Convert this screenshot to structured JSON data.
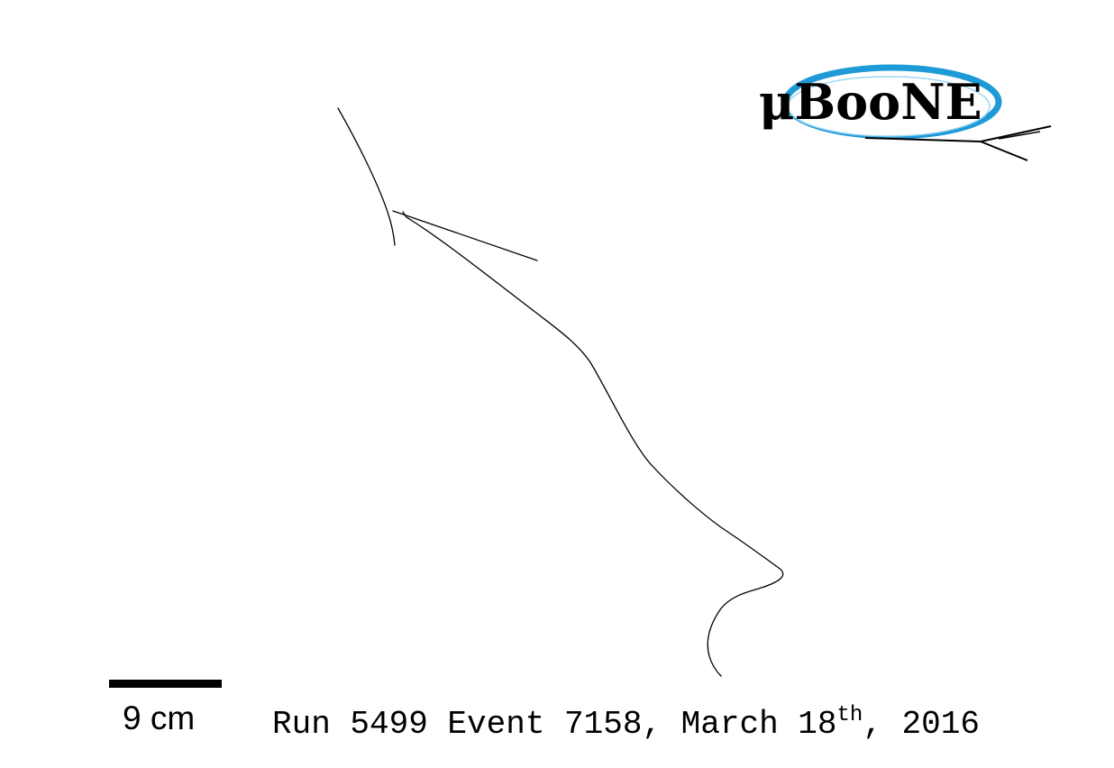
{
  "event_display": {
    "logo_text": "μBooNE",
    "scale": {
      "label": "9 cm"
    },
    "run_info": {
      "prefix": "Run 5499 Event 7158, March 18",
      "superscript": "th",
      "suffix": ", 2016"
    },
    "colors": {
      "background": "#ffffff",
      "tracks": "#000000",
      "logo_ellipse_blue": "#1e9ad6"
    }
  }
}
